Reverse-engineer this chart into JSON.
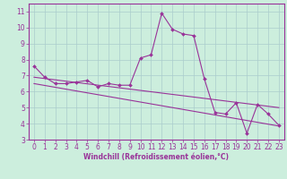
{
  "xlabel": "Windchill (Refroidissement éolien,°C)",
  "background_color": "#cceedd",
  "line_color": "#993399",
  "xlim": [
    -0.5,
    23.5
  ],
  "ylim": [
    3,
    11.5
  ],
  "yticks": [
    3,
    4,
    5,
    6,
    7,
    8,
    9,
    10,
    11
  ],
  "xticks": [
    0,
    1,
    2,
    3,
    4,
    5,
    6,
    7,
    8,
    9,
    10,
    11,
    12,
    13,
    14,
    15,
    16,
    17,
    18,
    19,
    20,
    21,
    22,
    23
  ],
  "series1_x": [
    0,
    1,
    2,
    3,
    4,
    5,
    6,
    7,
    8,
    9,
    10,
    11,
    12,
    13,
    14,
    15,
    16,
    17,
    18,
    19,
    20,
    21,
    22,
    23
  ],
  "series1_y": [
    7.6,
    6.9,
    6.5,
    6.5,
    6.6,
    6.7,
    6.3,
    6.5,
    6.4,
    6.4,
    8.1,
    8.3,
    10.9,
    9.9,
    9.6,
    9.5,
    6.8,
    4.7,
    4.6,
    5.3,
    3.4,
    5.2,
    4.6,
    3.9
  ],
  "series2_x": [
    0,
    23
  ],
  "series2_y": [
    6.9,
    5.0
  ],
  "series3_x": [
    0,
    23
  ],
  "series3_y": [
    6.5,
    3.85
  ],
  "grid_color": "#aacccc",
  "markersize": 2.0,
  "linewidth": 0.8,
  "tick_fontsize": 5.5,
  "xlabel_fontsize": 5.5,
  "xlabel_bold": true
}
